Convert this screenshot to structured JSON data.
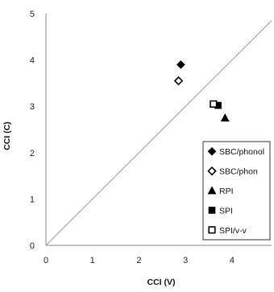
{
  "chart_data": {
    "type": "scatter",
    "title": "",
    "xlabel": "CCI (V)",
    "ylabel": "CCI (C)",
    "xlim": [
      0,
      4.85
    ],
    "ylim": [
      0,
      5
    ],
    "x_ticks": [
      "0",
      "1",
      "2",
      "3",
      "4"
    ],
    "y_ticks": [
      "0",
      "1",
      "2",
      "3",
      "4",
      "5"
    ],
    "grid": false,
    "reference_line": "y = x",
    "legend_position": "bottom-right",
    "series": [
      {
        "name": "SBC/phonol",
        "marker": "filled-diamond",
        "color": "#000000",
        "points": [
          {
            "x": 2.9,
            "y": 3.9
          }
        ]
      },
      {
        "name": "SBC/phon",
        "marker": "open-diamond",
        "color": "#000000",
        "points": [
          {
            "x": 2.85,
            "y": 3.55
          }
        ]
      },
      {
        "name": "RPI",
        "marker": "filled-triangle",
        "color": "#000000",
        "points": [
          {
            "x": 3.85,
            "y": 2.75
          }
        ]
      },
      {
        "name": "SPI",
        "marker": "filled-square",
        "color": "#000000",
        "points": [
          {
            "x": 3.7,
            "y": 3.02
          }
        ]
      },
      {
        "name": "SPI/v-v",
        "marker": "open-square",
        "color": "#000000",
        "points": [
          {
            "x": 3.6,
            "y": 3.05
          }
        ]
      }
    ],
    "colors": {
      "reference_line": "#999999",
      "axis": "#888888"
    }
  }
}
